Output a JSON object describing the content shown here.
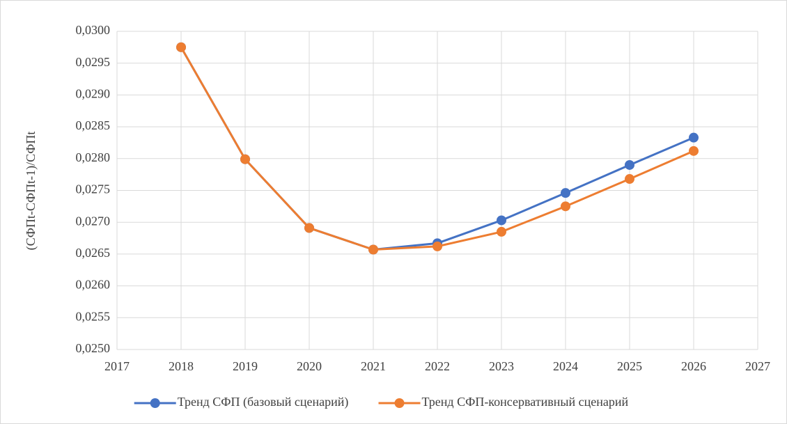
{
  "chart_data": {
    "type": "line",
    "y_label": "(СФПt-СФПt-1)/СФПt",
    "x": [
      2018,
      2019,
      2020,
      2021,
      2022,
      2023,
      2024,
      2025,
      2026
    ],
    "series": [
      {
        "name": "Тренд СФП (базовый сценарий)",
        "color": "#4472c4",
        "values": [
          0.02975,
          0.02799,
          0.02691,
          0.02657,
          0.02667,
          0.02703,
          0.02746,
          0.0279,
          0.02833
        ]
      },
      {
        "name": "Тренд СФП-консервативный сценарий",
        "color": "#ed7d31",
        "values": [
          0.02975,
          0.02799,
          0.02691,
          0.02657,
          0.02662,
          0.02685,
          0.02725,
          0.02768,
          0.02812
        ]
      }
    ],
    "xlim": [
      2017,
      2027
    ],
    "xticks": [
      2017,
      2018,
      2019,
      2020,
      2021,
      2022,
      2023,
      2024,
      2025,
      2026,
      2027
    ],
    "ylim": [
      0.025,
      0.03
    ],
    "yticks": [
      {
        "value": 0.025,
        "label": "0,0250"
      },
      {
        "value": 0.0255,
        "label": "0,0255"
      },
      {
        "value": 0.026,
        "label": "0,0260"
      },
      {
        "value": 0.0265,
        "label": "0,0265"
      },
      {
        "value": 0.027,
        "label": "0,0270"
      },
      {
        "value": 0.0275,
        "label": "0,0275"
      },
      {
        "value": 0.028,
        "label": "0,0280"
      },
      {
        "value": 0.0285,
        "label": "0,0285"
      },
      {
        "value": 0.029,
        "label": "0,0290"
      },
      {
        "value": 0.0295,
        "label": "0,0295"
      },
      {
        "value": 0.03,
        "label": "0,0300"
      }
    ],
    "grid": true,
    "legend": "bottom"
  }
}
